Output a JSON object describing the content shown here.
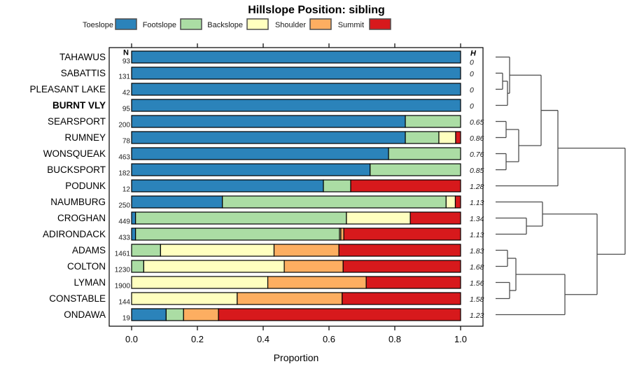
{
  "chart_data": {
    "type": "bar",
    "variant": "horizontal-stacked-proportion-with-dendrogram",
    "title": "Hillslope Position: sibling",
    "xlabel": "Proportion",
    "x_axis": {
      "min": 0.0,
      "max": 1.0,
      "ticks": [
        0.0,
        0.2,
        0.4,
        0.6,
        0.8,
        1.0
      ],
      "tick_labels": [
        "0.0",
        "0.2",
        "0.4",
        "0.6",
        "0.8",
        "1.0"
      ]
    },
    "columns": {
      "n_header": "N",
      "h_header": "H"
    },
    "series": [
      {
        "name": "Toeslope",
        "color": "#2b83ba"
      },
      {
        "name": "Footslope",
        "color": "#abdda4"
      },
      {
        "name": "Backslope",
        "color": "#ffffbf"
      },
      {
        "name": "Shoulder",
        "color": "#fdae61"
      },
      {
        "name": "Summit",
        "color": "#d7191c"
      }
    ],
    "rows": [
      {
        "name": "TAHAWUS",
        "n": "93",
        "h": "0",
        "bold": false,
        "values": [
          1,
          0,
          0,
          0,
          0
        ]
      },
      {
        "name": "SABATTIS",
        "n": "131",
        "h": "0",
        "bold": false,
        "values": [
          1,
          0,
          0,
          0,
          0
        ]
      },
      {
        "name": "PLEASANT LAKE",
        "n": "42",
        "h": "0",
        "bold": false,
        "values": [
          1,
          0,
          0,
          0,
          0
        ]
      },
      {
        "name": "BURNT VLY",
        "n": "95",
        "h": "0",
        "bold": true,
        "values": [
          1,
          0,
          0,
          0,
          0
        ]
      },
      {
        "name": "SEARSPORT",
        "n": "200",
        "h": "0.65",
        "bold": false,
        "values": [
          0.832,
          0.168,
          0,
          0,
          0
        ]
      },
      {
        "name": "RUMNEY",
        "n": "78",
        "h": "0.86",
        "bold": false,
        "values": [
          0.832,
          0.102,
          0.051,
          0,
          0.015
        ]
      },
      {
        "name": "WONSQUEAK",
        "n": "463",
        "h": "0.76",
        "bold": false,
        "values": [
          0.781,
          0.219,
          0,
          0,
          0
        ]
      },
      {
        "name": "BUCKSPORT",
        "n": "182",
        "h": "0.85",
        "bold": false,
        "values": [
          0.725,
          0.275,
          0,
          0,
          0
        ]
      },
      {
        "name": "PODUNK",
        "n": "12",
        "h": "1.28",
        "bold": false,
        "values": [
          0.583,
          0.083,
          0,
          0,
          0.334
        ]
      },
      {
        "name": "NAUMBURG",
        "n": "250",
        "h": "1.13",
        "bold": false,
        "values": [
          0.276,
          0.68,
          0.028,
          0,
          0.016
        ]
      },
      {
        "name": "CROGHAN",
        "n": "449",
        "h": "1.34",
        "bold": false,
        "values": [
          0.012,
          0.641,
          0.194,
          0,
          0.153
        ]
      },
      {
        "name": "ADIRONDACK",
        "n": "433",
        "h": "1.13",
        "bold": false,
        "values": [
          0.012,
          0.62,
          0.004,
          0.009,
          0.355
        ]
      },
      {
        "name": "ADAMS",
        "n": "1461",
        "h": "1.83",
        "bold": false,
        "values": [
          0,
          0.088,
          0.345,
          0.197,
          0.37
        ]
      },
      {
        "name": "COLTON",
        "n": "1230",
        "h": "1.68",
        "bold": false,
        "values": [
          0,
          0.037,
          0.427,
          0.179,
          0.357
        ]
      },
      {
        "name": "LYMAN",
        "n": "1900",
        "h": "1.56",
        "bold": false,
        "values": [
          0,
          0,
          0.414,
          0.299,
          0.287
        ]
      },
      {
        "name": "CONSTABLE",
        "n": "144",
        "h": "1.58",
        "bold": false,
        "values": [
          0,
          0,
          0.321,
          0.319,
          0.36
        ]
      },
      {
        "name": "ONDAWA",
        "n": "19",
        "h": "1.23",
        "bold": false,
        "values": [
          0.105,
          0.053,
          0,
          0.106,
          0.736
        ]
      }
    ],
    "legend_position": "top",
    "grid": false,
    "dendrogram": {
      "line_color": "#4d4d4d",
      "tree": {
        "x": 893,
        "children": [
          {
            "x": 797,
            "children": [
              {
                "x": 773,
                "children": [
                  {
                    "x": 728,
                    "children": [
                      {
                        "leaf": 0
                      },
                      {
                        "x": 725,
                        "children": [
                          {
                            "x": 718,
                            "children": [
                              {
                                "leaf": 1
                              },
                              {
                                "leaf": 2
                              }
                            ]
                          },
                          {
                            "leaf": 3
                          }
                        ]
                      }
                    ]
                  },
                  {
                    "x": 741,
                    "children": [
                      {
                        "x": 723,
                        "children": [
                          {
                            "leaf": 4
                          },
                          {
                            "leaf": 5
                          }
                        ]
                      },
                      {
                        "x": 723,
                        "children": [
                          {
                            "leaf": 6
                          },
                          {
                            "leaf": 7
                          }
                        ]
                      }
                    ]
                  }
                ]
              },
              {
                "leaf": 8
              }
            ]
          },
          {
            "x": 853,
            "children": [
              {
                "x": 775,
                "children": [
                  {
                    "leaf": 9
                  },
                  {
                    "x": 752,
                    "children": [
                      {
                        "leaf": 10
                      },
                      {
                        "leaf": 11
                      }
                    ]
                  }
                ]
              },
              {
                "x": 807,
                "children": [
                  {
                    "x": 737,
                    "children": [
                      {
                        "x": 725,
                        "children": [
                          {
                            "leaf": 12
                          },
                          {
                            "leaf": 13
                          }
                        ]
                      },
                      {
                        "x": 728,
                        "children": [
                          {
                            "leaf": 14
                          },
                          {
                            "leaf": 15
                          }
                        ]
                      }
                    ]
                  },
                  {
                    "leaf": 16
                  }
                ]
              }
            ]
          }
        ]
      }
    }
  }
}
